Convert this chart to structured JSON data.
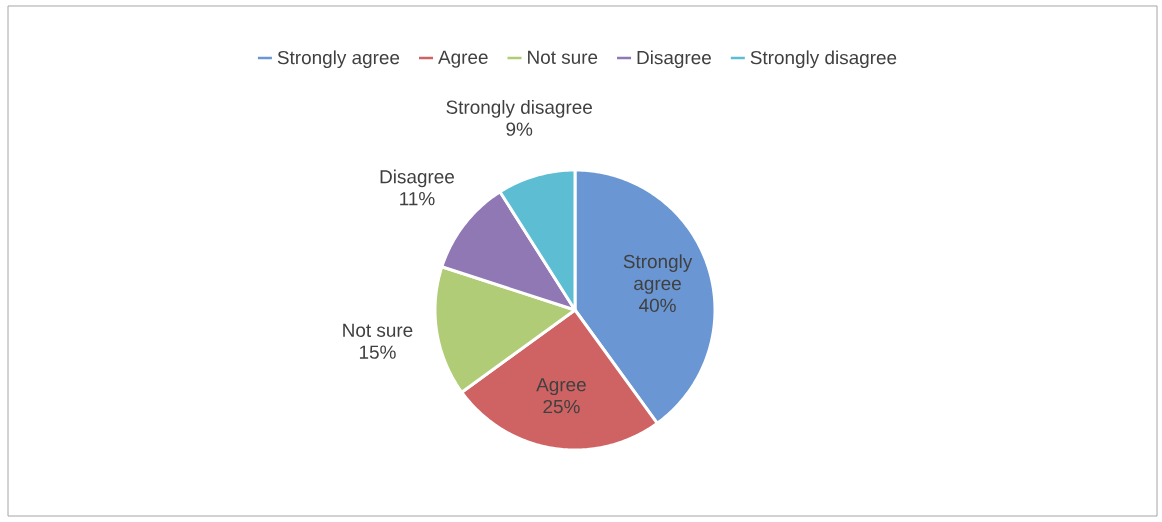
{
  "chart_data": {
    "type": "pie",
    "categories": [
      "Strongly agree",
      "Agree",
      "Not sure",
      "Disagree",
      "Strongly disagree"
    ],
    "values": [
      40,
      25,
      15,
      11,
      9
    ],
    "value_labels": [
      "40%",
      "25%",
      "15%",
      "11%",
      "9%"
    ],
    "colors": [
      "#6a97d4",
      "#cf6262",
      "#b0cc76",
      "#8f78b4",
      "#5cbdd3"
    ],
    "legend": "top"
  }
}
